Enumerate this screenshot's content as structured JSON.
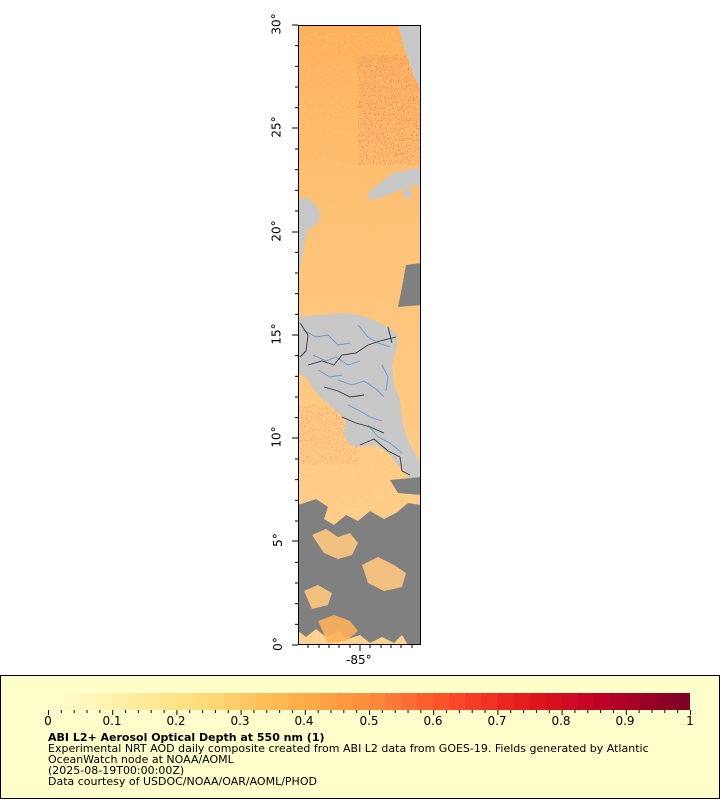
{
  "map": {
    "y_axis": {
      "ticks": [
        "0°",
        "5°",
        "10°",
        "15°",
        "20°",
        "25°",
        "30°"
      ]
    },
    "x_axis": {
      "ticks": [
        "-85°"
      ]
    },
    "colors": {
      "land": "#c8c8c8",
      "no_data": "#808080",
      "rivers": "#6699cc",
      "borders": "#333333"
    }
  },
  "legend": {
    "colorbar_ticks": [
      "0",
      "0.1",
      "0.2",
      "0.3",
      "0.4",
      "0.5",
      "0.6",
      "0.7",
      "0.8",
      "0.9",
      "1"
    ],
    "colorbar_colors": [
      "#ffffcc",
      "#ffeda0",
      "#fed976",
      "#feb24c",
      "#fd8d3c",
      "#fc4e2a",
      "#e31a1c",
      "#bd0026",
      "#800026"
    ],
    "title": "ABI L2+ Aerosol Optical Depth at 550 nm (1)",
    "line1": "Experimental NRT AOD daily composite created from ABI L2 data from GOES-19. Fields generated by Atlantic",
    "line2": "OceanWatch node at NOAA/AOML",
    "line3": "(2025-08-19T00:00:00Z)",
    "line4": "Data courtesy of USDOC/NOAA/OAR/AOML/PHOD"
  }
}
